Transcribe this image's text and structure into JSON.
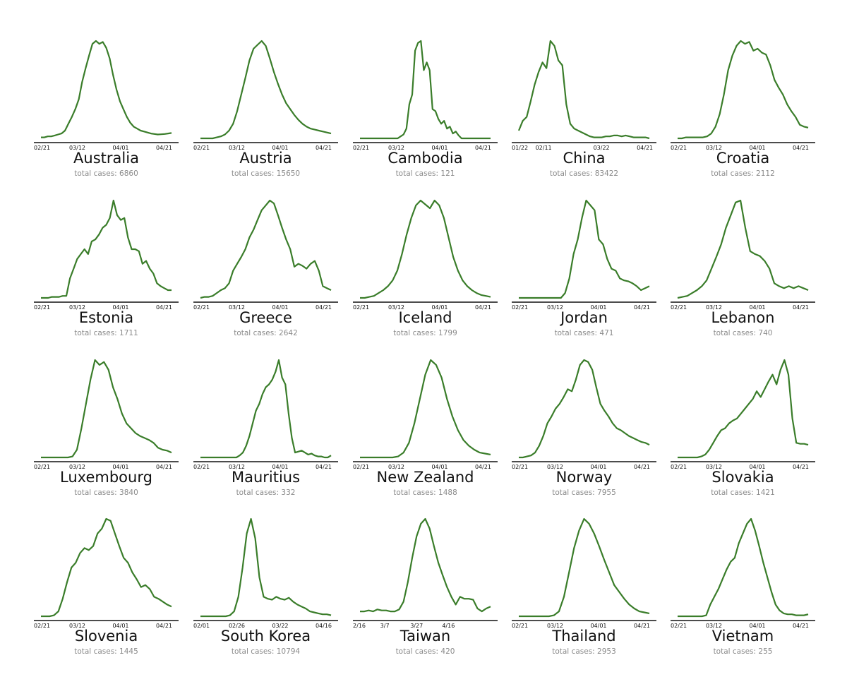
{
  "line_color": "#3a7d2a",
  "chart_data": [
    {
      "type": "line",
      "title": "Australia",
      "subtitle": "total cases: 6860",
      "ticks": [
        "02/21",
        "03/12",
        "04/01",
        "04/21"
      ],
      "tick_pos": [
        0,
        0.3,
        0.6,
        0.9
      ],
      "values": [
        0.01,
        0.01,
        0.02,
        0.02,
        0.03,
        0.04,
        0.05,
        0.08,
        0.15,
        0.22,
        0.3,
        0.4,
        0.58,
        0.72,
        0.85,
        0.97,
        1.0,
        0.97,
        0.99,
        0.93,
        0.82,
        0.65,
        0.5,
        0.38,
        0.3,
        0.22,
        0.16,
        0.12,
        0.1,
        0.08,
        0.07,
        0.06,
        0.05,
        0.045,
        0.04,
        0.042,
        0.045,
        0.05,
        0.055
      ]
    },
    {
      "type": "line",
      "title": "Austria",
      "subtitle": "total cases: 15650",
      "ticks": [
        "02/21",
        "03/12",
        "04/01",
        "04/21"
      ],
      "tick_pos": [
        0,
        0.3,
        0.6,
        0.9
      ],
      "values": [
        0.0,
        0.0,
        0.0,
        0.0,
        0.01,
        0.02,
        0.04,
        0.08,
        0.15,
        0.28,
        0.45,
        0.62,
        0.8,
        0.92,
        0.96,
        1.0,
        0.95,
        0.82,
        0.68,
        0.56,
        0.45,
        0.36,
        0.3,
        0.24,
        0.19,
        0.15,
        0.12,
        0.1,
        0.09,
        0.08,
        0.07,
        0.06,
        0.05
      ]
    },
    {
      "type": "line",
      "title": "Cambodia",
      "subtitle": "total cases: 121",
      "ticks": [
        "02/21",
        "03/12",
        "04/01",
        "04/21"
      ],
      "tick_pos": [
        0,
        0.3,
        0.6,
        0.9
      ],
      "values": [
        0,
        0,
        0,
        0,
        0,
        0,
        0,
        0,
        0,
        0,
        0,
        0,
        0,
        0,
        0.02,
        0.04,
        0.1,
        0.35,
        0.45,
        0.9,
        0.98,
        1.0,
        0.7,
        0.78,
        0.7,
        0.3,
        0.28,
        0.2,
        0.15,
        0.18,
        0.1,
        0.12,
        0.05,
        0.07,
        0.03,
        0.0,
        0,
        0,
        0,
        0,
        0,
        0,
        0,
        0,
        0,
        0
      ]
    },
    {
      "type": "line",
      "title": "China",
      "subtitle": "total cases: 83422",
      "ticks": [
        "01/22",
        "02/11",
        "03/22",
        "04/21"
      ],
      "tick_pos": [
        0,
        0.22,
        0.62,
        0.92
      ],
      "values": [
        0.08,
        0.18,
        0.22,
        0.38,
        0.55,
        0.68,
        0.78,
        0.72,
        1.0,
        0.95,
        0.8,
        0.75,
        0.35,
        0.15,
        0.1,
        0.08,
        0.06,
        0.04,
        0.02,
        0.01,
        0.01,
        0.01,
        0.02,
        0.02,
        0.03,
        0.03,
        0.02,
        0.03,
        0.02,
        0.01,
        0.01,
        0.01,
        0.01,
        0.0
      ]
    },
    {
      "type": "line",
      "title": "Croatia",
      "subtitle": "total cases: 2112",
      "ticks": [
        "02/21",
        "03/12",
        "04/01",
        "04/21"
      ],
      "tick_pos": [
        0,
        0.3,
        0.6,
        0.9
      ],
      "values": [
        0.0,
        0.0,
        0.01,
        0.01,
        0.01,
        0.01,
        0.01,
        0.02,
        0.05,
        0.12,
        0.25,
        0.45,
        0.7,
        0.85,
        0.95,
        1.0,
        0.97,
        0.99,
        0.9,
        0.92,
        0.88,
        0.86,
        0.75,
        0.6,
        0.52,
        0.45,
        0.35,
        0.28,
        0.22,
        0.14,
        0.12,
        0.11
      ]
    },
    {
      "type": "line",
      "title": "Estonia",
      "subtitle": "total cases: 1711",
      "ticks": [
        "02/21",
        "03/12",
        "04/01",
        "04/21"
      ],
      "tick_pos": [
        0,
        0.3,
        0.6,
        0.9
      ],
      "values": [
        0.0,
        0.0,
        0.0,
        0.01,
        0.01,
        0.01,
        0.02,
        0.02,
        0.2,
        0.3,
        0.4,
        0.45,
        0.5,
        0.45,
        0.58,
        0.6,
        0.65,
        0.72,
        0.75,
        0.82,
        1.0,
        0.85,
        0.8,
        0.82,
        0.62,
        0.5,
        0.5,
        0.48,
        0.35,
        0.38,
        0.3,
        0.25,
        0.15,
        0.12,
        0.1,
        0.08,
        0.08
      ]
    },
    {
      "type": "line",
      "title": "Greece",
      "subtitle": "total cases: 2642",
      "ticks": [
        "02/21",
        "03/12",
        "04/01",
        "04/21"
      ],
      "tick_pos": [
        0,
        0.3,
        0.6,
        0.9
      ],
      "values": [
        0.0,
        0.01,
        0.01,
        0.02,
        0.05,
        0.08,
        0.1,
        0.15,
        0.28,
        0.35,
        0.42,
        0.5,
        0.62,
        0.7,
        0.8,
        0.9,
        0.95,
        1.0,
        0.97,
        0.85,
        0.72,
        0.6,
        0.5,
        0.32,
        0.35,
        0.33,
        0.3,
        0.35,
        0.38,
        0.28,
        0.12,
        0.1,
        0.08
      ]
    },
    {
      "type": "line",
      "title": "Iceland",
      "subtitle": "total cases: 1799",
      "ticks": [
        "02/21",
        "03/12",
        "04/01",
        "04/21"
      ],
      "tick_pos": [
        0,
        0.3,
        0.6,
        0.9
      ],
      "values": [
        0.0,
        0.0,
        0.01,
        0.02,
        0.05,
        0.08,
        0.12,
        0.18,
        0.28,
        0.45,
        0.65,
        0.82,
        0.95,
        1.0,
        0.96,
        0.92,
        1.0,
        0.95,
        0.82,
        0.62,
        0.42,
        0.28,
        0.18,
        0.12,
        0.08,
        0.05,
        0.03,
        0.02,
        0.01
      ]
    },
    {
      "type": "line",
      "title": "Jordan",
      "subtitle": "total cases: 471",
      "ticks": [
        "02/21",
        "03/12",
        "04/01",
        "04/21"
      ],
      "tick_pos": [
        0,
        0.3,
        0.6,
        0.9
      ],
      "values": [
        0,
        0,
        0,
        0,
        0,
        0,
        0,
        0,
        0,
        0,
        0,
        0.05,
        0.2,
        0.45,
        0.6,
        0.82,
        1.0,
        0.95,
        0.9,
        0.6,
        0.55,
        0.4,
        0.3,
        0.28,
        0.2,
        0.18,
        0.17,
        0.15,
        0.12,
        0.08,
        0.1,
        0.12
      ]
    },
    {
      "type": "line",
      "title": "Lebanon",
      "subtitle": "total cases: 740",
      "ticks": [
        "02/21",
        "03/12",
        "04/01",
        "04/21"
      ],
      "tick_pos": [
        0,
        0.3,
        0.6,
        0.9
      ],
      "values": [
        0.0,
        0.01,
        0.02,
        0.05,
        0.08,
        0.12,
        0.18,
        0.3,
        0.42,
        0.55,
        0.72,
        0.85,
        0.98,
        1.0,
        0.72,
        0.48,
        0.45,
        0.43,
        0.38,
        0.3,
        0.15,
        0.12,
        0.1,
        0.12,
        0.1,
        0.12,
        0.1,
        0.08
      ]
    },
    {
      "type": "line",
      "title": "Luxembourg",
      "subtitle": "total cases: 3840",
      "ticks": [
        "02/21",
        "03/12",
        "04/01",
        "04/21"
      ],
      "tick_pos": [
        0,
        0.3,
        0.6,
        0.9
      ],
      "values": [
        0,
        0,
        0,
        0,
        0,
        0,
        0,
        0.01,
        0.08,
        0.3,
        0.55,
        0.8,
        1.0,
        0.95,
        0.98,
        0.9,
        0.72,
        0.6,
        0.45,
        0.35,
        0.3,
        0.25,
        0.22,
        0.2,
        0.18,
        0.15,
        0.1,
        0.08,
        0.07,
        0.05
      ]
    },
    {
      "type": "line",
      "title": "Mauritius",
      "subtitle": "total cases: 332",
      "ticks": [
        "02/21",
        "03/12",
        "04/01",
        "04/21"
      ],
      "tick_pos": [
        0,
        0.3,
        0.6,
        0.9
      ],
      "values": [
        0,
        0,
        0,
        0,
        0,
        0,
        0,
        0,
        0,
        0,
        0,
        0,
        0.02,
        0.05,
        0.12,
        0.22,
        0.35,
        0.48,
        0.55,
        0.65,
        0.72,
        0.75,
        0.8,
        0.88,
        1.0,
        0.82,
        0.75,
        0.45,
        0.2,
        0.05,
        0.06,
        0.07,
        0.05,
        0.03,
        0.04,
        0.02,
        0.01,
        0.01,
        0.0,
        0.0,
        0.02
      ]
    },
    {
      "type": "line",
      "title": "New Zealand",
      "subtitle": "total cases: 1488",
      "ticks": [
        "02/21",
        "03/12",
        "04/01",
        "04/21"
      ],
      "tick_pos": [
        0,
        0.3,
        0.6,
        0.9
      ],
      "values": [
        0,
        0,
        0,
        0,
        0,
        0,
        0,
        0.01,
        0.05,
        0.15,
        0.35,
        0.6,
        0.85,
        1.0,
        0.95,
        0.82,
        0.6,
        0.42,
        0.28,
        0.18,
        0.12,
        0.08,
        0.05,
        0.04,
        0.03
      ]
    },
    {
      "type": "line",
      "title": "Norway",
      "subtitle": "total cases: 7955",
      "ticks": [
        "02/21",
        "03/12",
        "04/01",
        "04/21"
      ],
      "tick_pos": [
        0,
        0.3,
        0.6,
        0.9
      ],
      "values": [
        0.0,
        0.0,
        0.01,
        0.02,
        0.05,
        0.12,
        0.22,
        0.35,
        0.42,
        0.5,
        0.55,
        0.62,
        0.7,
        0.68,
        0.8,
        0.95,
        1.0,
        0.98,
        0.9,
        0.72,
        0.55,
        0.48,
        0.42,
        0.35,
        0.3,
        0.28,
        0.25,
        0.22,
        0.2,
        0.18,
        0.16,
        0.15,
        0.13
      ]
    },
    {
      "type": "line",
      "title": "Slovakia",
      "subtitle": "total cases: 1421",
      "ticks": [
        "02/21",
        "03/12",
        "04/01",
        "04/21"
      ],
      "tick_pos": [
        0,
        0.3,
        0.6,
        0.9
      ],
      "values": [
        0,
        0,
        0,
        0,
        0,
        0,
        0.01,
        0.03,
        0.08,
        0.15,
        0.22,
        0.28,
        0.3,
        0.35,
        0.38,
        0.4,
        0.45,
        0.5,
        0.55,
        0.6,
        0.68,
        0.62,
        0.7,
        0.78,
        0.85,
        0.75,
        0.9,
        1.0,
        0.85,
        0.4,
        0.15,
        0.14,
        0.14,
        0.13
      ]
    },
    {
      "type": "line",
      "title": "Slovenia",
      "subtitle": "total cases: 1445",
      "ticks": [
        "02/21",
        "03/12",
        "04/01",
        "04/21"
      ],
      "tick_pos": [
        0,
        0.3,
        0.6,
        0.9
      ],
      "values": [
        0.0,
        0.0,
        0.0,
        0.01,
        0.05,
        0.18,
        0.35,
        0.5,
        0.55,
        0.65,
        0.7,
        0.68,
        0.72,
        0.85,
        0.9,
        1.0,
        0.98,
        0.85,
        0.72,
        0.6,
        0.55,
        0.45,
        0.38,
        0.3,
        0.32,
        0.28,
        0.2,
        0.18,
        0.15,
        0.12,
        0.1
      ]
    },
    {
      "type": "line",
      "title": "South Korea",
      "subtitle": "total cases: 10794",
      "ticks": [
        "02/01",
        "02/26",
        "03/22",
        "04/16"
      ],
      "tick_pos": [
        0,
        0.3,
        0.6,
        0.9
      ],
      "values": [
        0,
        0,
        0,
        0,
        0,
        0,
        0,
        0.01,
        0.05,
        0.2,
        0.5,
        0.85,
        1.0,
        0.8,
        0.4,
        0.2,
        0.18,
        0.17,
        0.2,
        0.18,
        0.17,
        0.19,
        0.15,
        0.12,
        0.1,
        0.08,
        0.05,
        0.04,
        0.03,
        0.02,
        0.02,
        0.01
      ]
    },
    {
      "type": "line",
      "title": "Taiwan",
      "subtitle": "total cases: 420",
      "ticks": [
        "2/16",
        "3/7",
        "3/27",
        "4/16"
      ],
      "tick_pos": [
        0,
        0.22,
        0.44,
        0.66
      ],
      "values": [
        0.05,
        0.05,
        0.06,
        0.05,
        0.07,
        0.06,
        0.06,
        0.05,
        0.05,
        0.07,
        0.15,
        0.35,
        0.6,
        0.82,
        0.95,
        1.0,
        0.9,
        0.72,
        0.55,
        0.42,
        0.3,
        0.2,
        0.12,
        0.2,
        0.18,
        0.18,
        0.17,
        0.08,
        0.05,
        0.08,
        0.1
      ]
    },
    {
      "type": "line",
      "title": "Thailand",
      "subtitle": "total cases: 2953",
      "ticks": [
        "02/21",
        "03/12",
        "04/01",
        "04/21"
      ],
      "tick_pos": [
        0,
        0.3,
        0.6,
        0.9
      ],
      "values": [
        0,
        0,
        0,
        0,
        0,
        0,
        0,
        0.01,
        0.05,
        0.2,
        0.45,
        0.7,
        0.88,
        1.0,
        0.95,
        0.85,
        0.72,
        0.58,
        0.45,
        0.32,
        0.25,
        0.18,
        0.12,
        0.08,
        0.05,
        0.04,
        0.03
      ]
    },
    {
      "type": "line",
      "title": "Vietnam",
      "subtitle": "total cases: 255",
      "ticks": [
        "02/21",
        "03/12",
        "04/01",
        "04/21"
      ],
      "tick_pos": [
        0,
        0.3,
        0.6,
        0.9
      ],
      "values": [
        0,
        0,
        0,
        0,
        0,
        0,
        0,
        0.01,
        0.12,
        0.2,
        0.28,
        0.38,
        0.48,
        0.56,
        0.6,
        0.75,
        0.85,
        0.95,
        1.0,
        0.88,
        0.72,
        0.55,
        0.4,
        0.25,
        0.12,
        0.06,
        0.03,
        0.02,
        0.02,
        0.01,
        0.01,
        0.01,
        0.02
      ]
    }
  ]
}
